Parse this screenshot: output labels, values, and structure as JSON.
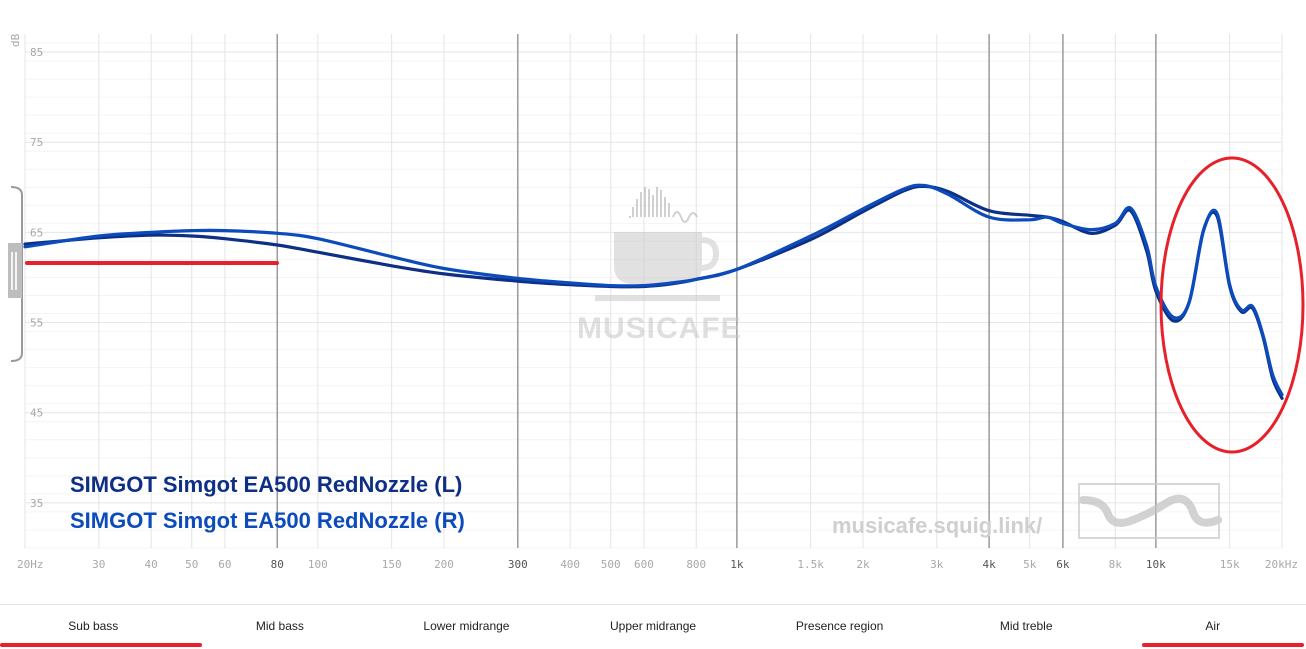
{
  "chart_data": {
    "type": "line",
    "xlabel": "",
    "ylabel": "dB",
    "x_scale": "log",
    "xlim": [
      20,
      20000
    ],
    "ylim": [
      30,
      87
    ],
    "y_ticks": [
      35,
      45,
      55,
      65,
      75,
      85
    ],
    "x_ticks": [
      {
        "v": 20,
        "label": "20Hz",
        "major": false
      },
      {
        "v": 30,
        "label": "30",
        "major": false
      },
      {
        "v": 40,
        "label": "40",
        "major": false
      },
      {
        "v": 50,
        "label": "50",
        "major": false
      },
      {
        "v": 60,
        "label": "60",
        "major": false
      },
      {
        "v": 80,
        "label": "80",
        "major": true
      },
      {
        "v": 100,
        "label": "100",
        "major": false
      },
      {
        "v": 150,
        "label": "150",
        "major": false
      },
      {
        "v": 200,
        "label": "200",
        "major": false
      },
      {
        "v": 300,
        "label": "300",
        "major": true
      },
      {
        "v": 400,
        "label": "400",
        "major": false
      },
      {
        "v": 500,
        "label": "500",
        "major": false
      },
      {
        "v": 600,
        "label": "600",
        "major": false
      },
      {
        "v": 800,
        "label": "800",
        "major": false
      },
      {
        "v": 1000,
        "label": "1k",
        "major": true
      },
      {
        "v": 1500,
        "label": "1.5k",
        "major": false
      },
      {
        "v": 2000,
        "label": "2k",
        "major": false
      },
      {
        "v": 3000,
        "label": "3k",
        "major": false
      },
      {
        "v": 4000,
        "label": "4k",
        "major": true
      },
      {
        "v": 5000,
        "label": "5k",
        "major": false
      },
      {
        "v": 6000,
        "label": "6k",
        "major": true
      },
      {
        "v": 8000,
        "label": "8k",
        "major": false
      },
      {
        "v": 10000,
        "label": "10k",
        "major": true
      },
      {
        "v": 15000,
        "label": "15k",
        "major": false
      },
      {
        "v": 20000,
        "label": "20kHz",
        "major": false
      }
    ],
    "series": [
      {
        "name": "SIMGOT Simgot EA500 RedNozzle (L)",
        "color": "#0d2f86",
        "x": [
          20,
          30,
          40,
          50,
          60,
          80,
          100,
          150,
          200,
          300,
          400,
          500,
          600,
          700,
          800,
          1000,
          1500,
          2000,
          2500,
          2800,
          3200,
          4000,
          5000,
          5500,
          6000,
          7000,
          8000,
          8700,
          9500,
          10000,
          11000,
          12000,
          13000,
          14000,
          15000,
          16000,
          17000,
          18000,
          19000,
          20000
        ],
        "y": [
          63.7,
          64.4,
          64.7,
          64.6,
          64.3,
          63.6,
          62.8,
          61.3,
          60.4,
          59.6,
          59.2,
          59.0,
          59.0,
          59.3,
          59.8,
          60.9,
          64.2,
          67.3,
          69.6,
          70.1,
          69.5,
          67.4,
          66.9,
          66.7,
          66.2,
          64.9,
          65.8,
          67.4,
          63.0,
          58.5,
          55.2,
          57.2,
          65.3,
          66.8,
          59.0,
          56.2,
          56.6,
          53.5,
          48.8,
          46.6
        ]
      },
      {
        "name": "SIMGOT Simgot EA500 RedNozzle (R)",
        "color": "#0c4bbb",
        "x": [
          20,
          30,
          40,
          50,
          60,
          80,
          100,
          150,
          200,
          300,
          400,
          500,
          600,
          700,
          800,
          1000,
          1500,
          2000,
          2500,
          2800,
          3200,
          4000,
          5000,
          5500,
          6000,
          7000,
          8000,
          8700,
          9500,
          10000,
          11000,
          12000,
          13000,
          14000,
          15000,
          16000,
          17000,
          18000,
          19000,
          20000
        ],
        "y": [
          63.4,
          64.6,
          65.0,
          65.2,
          65.2,
          64.9,
          64.3,
          62.3,
          61.0,
          59.9,
          59.4,
          59.1,
          59.1,
          59.4,
          59.8,
          60.9,
          64.6,
          67.6,
          69.8,
          70.2,
          69.2,
          66.7,
          66.4,
          66.7,
          66.0,
          65.3,
          66.0,
          67.7,
          63.6,
          59.0,
          55.6,
          57.2,
          65.2,
          67.1,
          59.2,
          56.4,
          56.8,
          53.7,
          49.2,
          47.0
        ]
      }
    ],
    "bands": [
      "Sub bass",
      "Mid bass",
      "Lower midrange",
      "Upper midrange",
      "Presence region",
      "Mid treble",
      "Air"
    ],
    "watermark_text": "musicafe.squig.link/",
    "logo_text": "MUSICAFE"
  },
  "annotation_color": "#e8202a"
}
